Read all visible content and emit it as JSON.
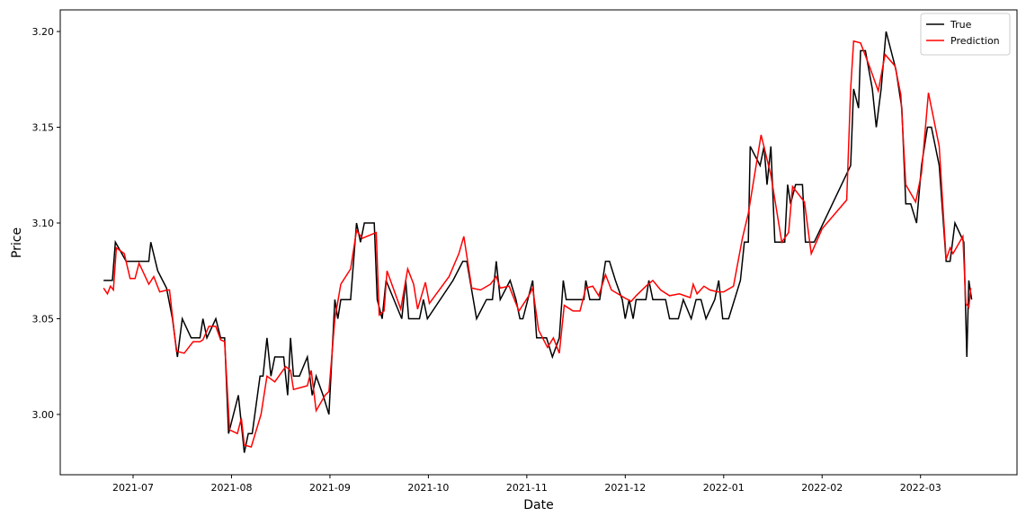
{
  "chart_data": {
    "type": "line",
    "xlabel": "Date",
    "ylabel": "Price",
    "xlim": [
      -0.74,
      8.98
    ],
    "ylim": [
      2.9685,
      3.2113
    ],
    "xticks": [
      {
        "value": 0,
        "label": "2021-07"
      },
      {
        "value": 1,
        "label": "2021-08"
      },
      {
        "value": 2,
        "label": "2021-09"
      },
      {
        "value": 3,
        "label": "2021-10"
      },
      {
        "value": 4,
        "label": "2021-11"
      },
      {
        "value": 5,
        "label": "2021-12"
      },
      {
        "value": 6,
        "label": "2022-01"
      },
      {
        "value": 7,
        "label": "2022-02"
      },
      {
        "value": 8,
        "label": "2022-03"
      }
    ],
    "yticks": [
      {
        "value": 3,
        "label": "3.00"
      },
      {
        "value": 3.05,
        "label": "3.05"
      },
      {
        "value": 3.1,
        "label": "3.10"
      },
      {
        "value": 3.15,
        "label": "3.15"
      },
      {
        "value": 3.2,
        "label": "3.20"
      }
    ],
    "legend": "upper right",
    "grid": false,
    "series": [
      {
        "name": "True",
        "color": "#000000",
        "x": [
          -0.3,
          -0.21,
          -0.18,
          -0.07,
          0.16,
          0.18,
          0.25,
          0.34,
          0.4,
          0.45,
          0.5,
          0.59,
          0.68,
          0.71,
          0.75,
          0.84,
          0.89,
          0.93,
          0.97,
          1.07,
          1.13,
          1.17,
          1.21,
          1.29,
          1.32,
          1.36,
          1.4,
          1.44,
          1.53,
          1.57,
          1.6,
          1.63,
          1.69,
          1.77,
          1.82,
          1.86,
          1.93,
          1.99,
          2.05,
          2.08,
          2.11,
          2.21,
          2.27,
          2.31,
          2.35,
          2.45,
          2.48,
          2.53,
          2.57,
          2.73,
          2.77,
          2.8,
          2.91,
          2.95,
          2.99,
          3.25,
          3.35,
          3.39,
          3.49,
          3.59,
          3.65,
          3.69,
          3.73,
          3.83,
          3.89,
          3.93,
          3.96,
          4.06,
          4.1,
          4.2,
          4.26,
          4.33,
          4.37,
          4.4,
          4.58,
          4.6,
          4.64,
          4.74,
          4.8,
          4.84,
          4.9,
          4.97,
          5.0,
          5.04,
          5.08,
          5.11,
          5.21,
          5.24,
          5.28,
          5.41,
          5.45,
          5.54,
          5.59,
          5.67,
          5.72,
          5.77,
          5.82,
          5.91,
          5.95,
          5.99,
          6.05,
          6.17,
          6.21,
          6.25,
          6.27,
          6.37,
          6.41,
          6.44,
          6.48,
          6.52,
          6.58,
          6.62,
          6.65,
          6.68,
          6.73,
          6.8,
          6.83,
          6.92,
          7.29,
          7.32,
          7.37,
          7.39,
          7.44,
          7.51,
          7.55,
          7.6,
          7.65,
          7.75,
          7.81,
          7.85,
          7.9,
          7.96,
          8.01,
          8.07,
          8.11,
          8.19,
          8.26,
          8.3,
          8.35,
          8.44,
          8.47,
          8.49,
          8.52
        ],
        "values": [
          3.07,
          3.07,
          3.09,
          3.08,
          3.08,
          3.09,
          3.075,
          3.066,
          3.05,
          3.03,
          3.05,
          3.04,
          3.04,
          3.05,
          3.04,
          3.05,
          3.04,
          3.04,
          2.99,
          3.01,
          2.98,
          2.99,
          2.99,
          3.02,
          3.02,
          3.04,
          3.02,
          3.03,
          3.03,
          3.01,
          3.04,
          3.02,
          3.02,
          3.03,
          3.01,
          3.02,
          3.01,
          3.0,
          3.06,
          3.05,
          3.06,
          3.06,
          3.1,
          3.09,
          3.1,
          3.1,
          3.06,
          3.05,
          3.07,
          3.05,
          3.07,
          3.05,
          3.05,
          3.06,
          3.05,
          3.07,
          3.08,
          3.08,
          3.05,
          3.06,
          3.06,
          3.08,
          3.06,
          3.07,
          3.06,
          3.05,
          3.05,
          3.07,
          3.04,
          3.04,
          3.03,
          3.04,
          3.07,
          3.06,
          3.06,
          3.07,
          3.06,
          3.06,
          3.08,
          3.08,
          3.07,
          3.06,
          3.05,
          3.06,
          3.05,
          3.06,
          3.06,
          3.07,
          3.06,
          3.06,
          3.05,
          3.05,
          3.06,
          3.05,
          3.06,
          3.06,
          3.05,
          3.06,
          3.07,
          3.05,
          3.05,
          3.07,
          3.09,
          3.09,
          3.14,
          3.13,
          3.14,
          3.12,
          3.14,
          3.09,
          3.09,
          3.09,
          3.12,
          3.11,
          3.12,
          3.12,
          3.09,
          3.09,
          3.13,
          3.17,
          3.16,
          3.19,
          3.19,
          3.17,
          3.15,
          3.17,
          3.2,
          3.18,
          3.16,
          3.11,
          3.11,
          3.1,
          3.13,
          3.15,
          3.15,
          3.13,
          3.08,
          3.08,
          3.1,
          3.09,
          3.03,
          3.07,
          3.06
        ]
      },
      {
        "name": "Prediction",
        "color": "#ff0000",
        "x": [
          -0.3,
          -0.26,
          -0.23,
          -0.2,
          -0.17,
          -0.09,
          -0.03,
          0.02,
          0.06,
          0.16,
          0.21,
          0.27,
          0.35,
          0.37,
          0.44,
          0.52,
          0.61,
          0.68,
          0.71,
          0.77,
          0.84,
          0.89,
          0.93,
          0.98,
          1.06,
          1.1,
          1.13,
          1.2,
          1.3,
          1.36,
          1.44,
          1.55,
          1.6,
          1.63,
          1.77,
          1.81,
          1.86,
          1.95,
          1.99,
          2.05,
          2.11,
          2.21,
          2.27,
          2.33,
          2.47,
          2.5,
          2.55,
          2.58,
          2.72,
          2.79,
          2.85,
          2.89,
          2.97,
          3.01,
          3.21,
          3.31,
          3.36,
          3.44,
          3.53,
          3.63,
          3.69,
          3.73,
          3.82,
          3.92,
          4.02,
          4.06,
          4.12,
          4.21,
          4.27,
          4.33,
          4.38,
          4.47,
          4.54,
          4.6,
          4.67,
          4.73,
          4.8,
          4.86,
          4.99,
          5.06,
          5.11,
          5.21,
          5.28,
          5.36,
          5.45,
          5.55,
          5.66,
          5.69,
          5.73,
          5.8,
          5.86,
          5.94,
          6.0,
          6.1,
          6.19,
          6.25,
          6.38,
          6.48,
          6.59,
          6.66,
          6.7,
          6.82,
          6.89,
          7.0,
          7.25,
          7.29,
          7.32,
          7.39,
          7.48,
          7.57,
          7.64,
          7.74,
          7.8,
          7.85,
          7.95,
          8.01,
          8.08,
          8.19,
          8.26,
          8.3,
          8.33,
          8.43,
          8.46,
          8.49,
          8.51
        ],
        "values": [
          3.066,
          3.063,
          3.067,
          3.065,
          3.087,
          3.084,
          3.071,
          3.071,
          3.079,
          3.068,
          3.072,
          3.064,
          3.065,
          3.065,
          3.033,
          3.032,
          3.038,
          3.038,
          3.039,
          3.046,
          3.046,
          3.039,
          3.038,
          2.992,
          2.99,
          2.998,
          2.984,
          2.983,
          3.0,
          3.02,
          3.017,
          3.025,
          3.023,
          3.013,
          3.015,
          3.023,
          3.002,
          3.01,
          3.012,
          3.05,
          3.068,
          3.076,
          3.096,
          3.092,
          3.095,
          3.052,
          3.054,
          3.075,
          3.055,
          3.076,
          3.068,
          3.055,
          3.069,
          3.058,
          3.072,
          3.084,
          3.093,
          3.066,
          3.065,
          3.068,
          3.072,
          3.066,
          3.067,
          3.054,
          3.062,
          3.066,
          3.044,
          3.035,
          3.04,
          3.032,
          3.057,
          3.054,
          3.054,
          3.066,
          3.067,
          3.062,
          3.073,
          3.065,
          3.061,
          3.059,
          3.062,
          3.067,
          3.07,
          3.065,
          3.062,
          3.063,
          3.061,
          3.068,
          3.063,
          3.067,
          3.065,
          3.064,
          3.064,
          3.067,
          3.092,
          3.105,
          3.146,
          3.125,
          3.09,
          3.095,
          3.119,
          3.111,
          3.084,
          3.097,
          3.112,
          3.17,
          3.195,
          3.194,
          3.182,
          3.169,
          3.188,
          3.182,
          3.167,
          3.12,
          3.111,
          3.126,
          3.168,
          3.14,
          3.081,
          3.087,
          3.084,
          3.093,
          3.058,
          3.056,
          3.066
        ]
      }
    ]
  }
}
